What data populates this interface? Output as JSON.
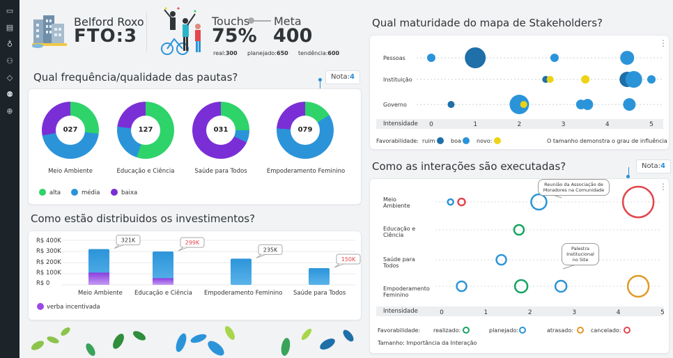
{
  "header": {
    "city": "Belford Roxo",
    "fto": "FTO:3",
    "touchs_label": "Touchs",
    "touchs_value": "75%",
    "meta_label": "Meta",
    "meta_value": "400",
    "real_label": "real:",
    "real_value": "300",
    "planejado_label": "planejado:",
    "planejado_value": "650",
    "tendencia_label": "tendência:",
    "tendencia_value": "600"
  },
  "sidebar": {
    "icons": [
      "monitor-icon",
      "dashboard-icon",
      "bulb-icon",
      "users-icon",
      "tag-icon",
      "group-icon",
      "globe-icon"
    ]
  },
  "pautas": {
    "title": "Qual frequência/qualidade das pautas?",
    "nota_label": "Nota:",
    "nota_value": "4",
    "items": [
      {
        "value": "027",
        "label": "Meio Ambiente",
        "alta": 0.27,
        "media": 0.45,
        "baixa": 0.28
      },
      {
        "value": "127",
        "label": "Educação e Ciência",
        "alta": 0.55,
        "media": 0.22,
        "baixa": 0.23
      },
      {
        "value": "031",
        "label": "Saúde para Todos",
        "alta": 0.25,
        "media": 0.07,
        "baixa": 0.68
      },
      {
        "value": "079",
        "label": "Empoderamento Feminino",
        "alta": 0.16,
        "media": 0.6,
        "baixa": 0.24
      }
    ],
    "legend": {
      "alta": "alta",
      "media": "média",
      "baixa": "baixa"
    }
  },
  "investimentos": {
    "title": "Como estão distribuidos os investimentos?",
    "ylabels": [
      "R$ 400K",
      "R$ 300K",
      "R$ 200K",
      "R$ 100K",
      "R$ 0"
    ],
    "legend": "verba incentivada"
  },
  "chart_data": [
    {
      "type": "bar",
      "categories": [
        "Meio Ambiente",
        "Educação e Ciência",
        "Empoderamento Feminino",
        "Saúde para Todos"
      ],
      "series": [
        {
          "name": "verba incentivada",
          "values": [
            110,
            60,
            0,
            0
          ]
        }
      ],
      "totals": [
        321,
        299,
        235,
        150
      ],
      "total_labels": [
        "321K",
        "299K",
        "235K",
        "150K"
      ],
      "ylim": [
        0,
        400
      ]
    },
    {
      "type": "scatter",
      "title": "Qual maturidade do mapa de Stakeholders?",
      "rows": [
        "Pessoas",
        "Instituição",
        "Governo"
      ],
      "xlabel": "Intensidade",
      "xticks": [
        "0",
        "1",
        "2",
        "3",
        "4",
        "5"
      ],
      "points": [
        {
          "row": "Pessoas",
          "x": 0.0,
          "size": 6,
          "color": "boa"
        },
        {
          "row": "Pessoas",
          "x": 1.0,
          "size": 15,
          "color": "ruim"
        },
        {
          "row": "Pessoas",
          "x": 2.8,
          "size": 6,
          "color": "boa"
        },
        {
          "row": "Pessoas",
          "x": 4.45,
          "size": 10,
          "color": "boa"
        },
        {
          "row": "Instituição",
          "x": 2.6,
          "size": 5,
          "color": "ruim"
        },
        {
          "row": "Instituição",
          "x": 2.7,
          "size": 5,
          "color": "novo"
        },
        {
          "row": "Instituição",
          "x": 3.5,
          "size": 6,
          "color": "novo"
        },
        {
          "row": "Instituição",
          "x": 4.45,
          "size": 11,
          "color": "ruim"
        },
        {
          "row": "Instituição",
          "x": 4.6,
          "size": 12,
          "color": "boa"
        },
        {
          "row": "Instituição",
          "x": 5.0,
          "size": 6,
          "color": "boa"
        },
        {
          "row": "Governo",
          "x": 0.45,
          "size": 5,
          "color": "ruim"
        },
        {
          "row": "Governo",
          "x": 2.0,
          "size": 14,
          "color": "boa"
        },
        {
          "row": "Governo",
          "x": 2.1,
          "size": 5,
          "color": "novo"
        },
        {
          "row": "Governo",
          "x": 3.4,
          "size": 7,
          "color": "boa"
        },
        {
          "row": "Governo",
          "x": 3.55,
          "size": 8,
          "color": "boa"
        },
        {
          "row": "Governo",
          "x": 4.5,
          "size": 9,
          "color": "boa"
        }
      ],
      "legend_label": "Favorabilidade:",
      "legend": [
        "ruim",
        "boa",
        "novo"
      ],
      "note": "O tamanho demonstra o grau de influência"
    },
    {
      "type": "scatter",
      "title": "Como as interações são executadas?",
      "rows": [
        "Meio Ambiente",
        "Educação e Ciência",
        "Saúde para Todos",
        "Empoderamento Feminino"
      ],
      "xlabel": "Intensidade",
      "xticks": [
        "0",
        "1",
        "2",
        "3",
        "4",
        "5"
      ],
      "points": [
        {
          "row": "Meio Ambiente",
          "x": 0.2,
          "size": 4,
          "status": "planejado"
        },
        {
          "row": "Meio Ambiente",
          "x": 0.45,
          "size": 5,
          "status": "cancelado"
        },
        {
          "row": "Meio Ambiente",
          "x": 2.2,
          "size": 11,
          "status": "planejado"
        },
        {
          "row": "Meio Ambiente",
          "x": 4.45,
          "size": 22,
          "status": "cancelado"
        },
        {
          "row": "Educação e Ciência",
          "x": 1.75,
          "size": 7,
          "status": "realizado"
        },
        {
          "row": "Saúde para Todos",
          "x": 1.35,
          "size": 7,
          "status": "planejado"
        },
        {
          "row": "Empoderamento Feminino",
          "x": 0.45,
          "size": 7,
          "status": "planejado"
        },
        {
          "row": "Empoderamento Feminino",
          "x": 1.8,
          "size": 9,
          "status": "realizado"
        },
        {
          "row": "Empoderamento Feminino",
          "x": 2.7,
          "size": 8,
          "status": "planejado"
        },
        {
          "row": "Empoderamento Feminino",
          "x": 4.45,
          "size": 15,
          "status": "atrasado"
        }
      ],
      "legend_label": "Favorabilidade:",
      "legend": [
        "realizado:",
        "planejado:",
        "atrasado:",
        "cancelado:"
      ],
      "note": "Tamanho: Importância da Interação"
    }
  ],
  "stakeholders": {
    "title": "Qual maturidade do mapa de Stakeholders?",
    "rows": [
      "Pessoas",
      "Instituição",
      "Governo"
    ],
    "xlabel": "Intensidade",
    "legend_label": "Favorabilidade:",
    "legend_ruim": "ruim",
    "legend_boa": "boa",
    "legend_novo": "novo:",
    "note": "O tamanho demonstra o grau de influência"
  },
  "interacoes": {
    "title": "Como as interações são executadas?",
    "nota_label": "Nota:",
    "nota_value": "4",
    "rows": [
      "Meio\nAmbiente",
      "Educação e\nCiência",
      "Saúde para\nTodos",
      "Empoderamento\nFeminino"
    ],
    "xlabel": "Intensidade",
    "legend_label": "Favorabilidade:",
    "legend_realizado": "realizado:",
    "legend_planejado": "planejado:",
    "legend_atrasado": "atrasado:",
    "legend_cancelado": "cancelado:",
    "note": "Tamanho: Importância da Interação",
    "callout1": "Reunião da Associação de\nMoradores na Comunidade",
    "callout2": "Palestra\nInstitucional\nno Site"
  },
  "colors": {
    "green": "#2ed36a",
    "blue": "#2b94d9",
    "purple": "#7a2fd6",
    "dark_blue": "#1f6fa8",
    "yellow": "#ecd315",
    "orange": "#e09a24",
    "red": "#e2474d",
    "teal_green": "#15a361"
  }
}
